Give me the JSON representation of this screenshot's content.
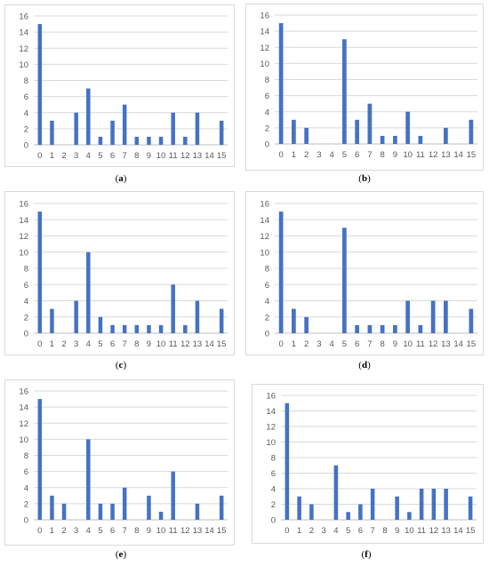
{
  "chart_data": [
    {
      "type": "bar",
      "caption_letter": "a",
      "categories": [
        "0",
        "1",
        "2",
        "3",
        "4",
        "5",
        "6",
        "7",
        "8",
        "9",
        "10",
        "11",
        "12",
        "13",
        "14",
        "15"
      ],
      "values": [
        15,
        3,
        0,
        4,
        7,
        1,
        3,
        5,
        1,
        1,
        1,
        4,
        1,
        4,
        0,
        3
      ],
      "yticks": [
        "0",
        "2",
        "4",
        "6",
        "8",
        "10",
        "12",
        "14",
        "16"
      ],
      "ylim": [
        0,
        16
      ],
      "grid": true
    },
    {
      "type": "bar",
      "caption_letter": "b",
      "categories": [
        "0",
        "1",
        "2",
        "3",
        "4",
        "5",
        "6",
        "7",
        "8",
        "9",
        "10",
        "11",
        "12",
        "13",
        "14",
        "15"
      ],
      "values": [
        15,
        3,
        2,
        0,
        0,
        13,
        3,
        5,
        1,
        1,
        4,
        1,
        0,
        2,
        0,
        3
      ],
      "yticks": [
        "0",
        "2",
        "4",
        "6",
        "8",
        "10",
        "12",
        "14",
        "16"
      ],
      "ylim": [
        0,
        16
      ],
      "grid": true
    },
    {
      "type": "bar",
      "caption_letter": "c",
      "categories": [
        "0",
        "1",
        "2",
        "3",
        "4",
        "5",
        "6",
        "7",
        "8",
        "9",
        "10",
        "11",
        "12",
        "13",
        "14",
        "15"
      ],
      "values": [
        15,
        3,
        0,
        4,
        10,
        2,
        1,
        1,
        1,
        1,
        1,
        6,
        1,
        4,
        0,
        3
      ],
      "yticks": [
        "0",
        "2",
        "4",
        "6",
        "8",
        "10",
        "12",
        "14",
        "16"
      ],
      "ylim": [
        0,
        16
      ],
      "grid": true
    },
    {
      "type": "bar",
      "caption_letter": "d",
      "categories": [
        "0",
        "1",
        "2",
        "3",
        "4",
        "5",
        "6",
        "7",
        "8",
        "9",
        "10",
        "11",
        "12",
        "13",
        "14",
        "15"
      ],
      "values": [
        15,
        3,
        2,
        0,
        0,
        13,
        1,
        1,
        1,
        1,
        4,
        1,
        4,
        4,
        0,
        3
      ],
      "yticks": [
        "0",
        "2",
        "4",
        "6",
        "8",
        "10",
        "12",
        "14",
        "16"
      ],
      "ylim": [
        0,
        16
      ],
      "grid": true
    },
    {
      "type": "bar",
      "caption_letter": "e",
      "categories": [
        "0",
        "1",
        "2",
        "3",
        "4",
        "5",
        "6",
        "7",
        "8",
        "9",
        "10",
        "11",
        "12",
        "13",
        "14",
        "15"
      ],
      "values": [
        15,
        3,
        2,
        0,
        10,
        2,
        2,
        4,
        0,
        3,
        1,
        6,
        0,
        2,
        0,
        3
      ],
      "yticks": [
        "0",
        "2",
        "4",
        "6",
        "8",
        "10",
        "12",
        "14",
        "16"
      ],
      "ylim": [
        0,
        16
      ],
      "grid": true
    },
    {
      "type": "bar",
      "caption_letter": "f",
      "categories": [
        "0",
        "1",
        "2",
        "3",
        "4",
        "5",
        "6",
        "7",
        "8",
        "9",
        "10",
        "11",
        "12",
        "13",
        "14",
        "15"
      ],
      "values": [
        15,
        3,
        2,
        0,
        7,
        1,
        2,
        4,
        0,
        3,
        1,
        4,
        4,
        4,
        0,
        3
      ],
      "yticks": [
        "0",
        "2",
        "4",
        "6",
        "8",
        "10",
        "12",
        "14",
        "16"
      ],
      "ylim": [
        0,
        16
      ],
      "grid": true
    }
  ],
  "colors": {
    "bar": "#4472c4",
    "grid": "#d9d9d9",
    "axis": "#bfbfbf",
    "tick_text": "#595959"
  }
}
